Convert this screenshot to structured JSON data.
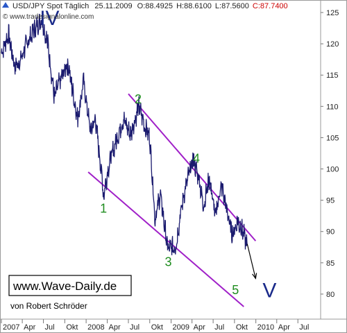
{
  "header": {
    "symbol": "USD/JPY Spot Täglich",
    "date": "25.11.2009",
    "open": "O:88.4925",
    "high": "H:88.6100",
    "low": "L:87.5600",
    "close": "C:87.7400",
    "source": "© www.tradesignalonline.com"
  },
  "watermark": {
    "site": "www.Wave-Daily.de",
    "author": "von Robert Schröder"
  },
  "colors": {
    "price": "#1a1a6e",
    "channel": "#a020c8",
    "wave_label": "#1e8c1e",
    "wave_big": "#1a2a8a",
    "close": "#cc0000"
  },
  "chart_data": {
    "type": "line",
    "title": "USD/JPY Spot Täglich",
    "xlabel": "",
    "ylabel": "",
    "ylim": [
      76,
      127
    ],
    "y_ticks": [
      80,
      85,
      90,
      95,
      100,
      105,
      110,
      115,
      120,
      125
    ],
    "x_ticks": [
      "2007",
      "Apr",
      "Jul",
      "Okt",
      "2008",
      "Apr",
      "Jul",
      "Okt",
      "2009",
      "Apr",
      "Jul",
      "Okt",
      "2010",
      "Apr",
      "Jul"
    ],
    "x_tick_dates": [
      "2007-01-01",
      "2007-04-01",
      "2007-07-01",
      "2007-10-01",
      "2008-01-01",
      "2008-04-01",
      "2008-07-01",
      "2008-10-01",
      "2009-01-01",
      "2009-04-01",
      "2009-07-01",
      "2009-10-01",
      "2010-01-01",
      "2010-04-01",
      "2010-07-01"
    ],
    "series": [
      {
        "points": [
          [
            "2007-01-01",
            118.5
          ],
          [
            "2007-02-01",
            121.5
          ],
          [
            "2007-02-26",
            116.5
          ],
          [
            "2007-03-20",
            117.0
          ],
          [
            "2007-04-20",
            120.0
          ],
          [
            "2007-05-20",
            122.0
          ],
          [
            "2007-06-22",
            124.0
          ],
          [
            "2007-07-20",
            120.0
          ],
          [
            "2007-08-17",
            111.5
          ],
          [
            "2007-09-10",
            114.0
          ],
          [
            "2007-10-15",
            117.0
          ],
          [
            "2007-11-01",
            113.0
          ],
          [
            "2007-11-26",
            108.0
          ],
          [
            "2007-12-20",
            114.0
          ],
          [
            "2008-01-20",
            106.0
          ],
          [
            "2008-02-10",
            108.0
          ],
          [
            "2008-03-17",
            96.0
          ],
          [
            "2008-04-10",
            101.0
          ],
          [
            "2008-05-10",
            104.5
          ],
          [
            "2008-06-10",
            108.0
          ],
          [
            "2008-07-10",
            105.5
          ],
          [
            "2008-08-15",
            110.0
          ],
          [
            "2008-09-10",
            107.0
          ],
          [
            "2008-10-01",
            105.0
          ],
          [
            "2008-10-24",
            92.0
          ],
          [
            "2008-11-15",
            96.0
          ],
          [
            "2008-12-17",
            87.3
          ],
          [
            "2009-01-21",
            87.5
          ],
          [
            "2009-02-15",
            94.0
          ],
          [
            "2009-03-10",
            98.0
          ],
          [
            "2009-04-06",
            101.5
          ],
          [
            "2009-05-01",
            98.5
          ],
          [
            "2009-05-20",
            94.0
          ],
          [
            "2009-06-15",
            98.5
          ],
          [
            "2009-07-10",
            92.5
          ],
          [
            "2009-08-05",
            97.5
          ],
          [
            "2009-09-01",
            93.0
          ],
          [
            "2009-09-20",
            89.5
          ],
          [
            "2009-10-15",
            91.5
          ],
          [
            "2009-11-01",
            90.5
          ],
          [
            "2009-11-25",
            87.74
          ]
        ]
      }
    ],
    "channel_upper": [
      [
        "2008-07-01",
        112.0
      ],
      [
        "2009-12-31",
        88.5
      ]
    ],
    "channel_lower": [
      [
        "2008-01-10",
        99.5
      ],
      [
        "2009-11-10",
        78.0
      ]
    ],
    "projection": [
      [
        "2009-11-25",
        88.0
      ],
      [
        "2009-12-31",
        82.5
      ]
    ],
    "wave_labels": [
      {
        "text": "IV",
        "x": "2007-06-15",
        "y": 123.0,
        "size": "big"
      },
      {
        "text": "1",
        "x": "2008-03-01",
        "y": 93.0,
        "size": "small"
      },
      {
        "text": "2",
        "x": "2008-07-28",
        "y": 110.5,
        "size": "small"
      },
      {
        "text": "3",
        "x": "2008-12-05",
        "y": 84.5,
        "size": "small"
      },
      {
        "text": "4",
        "x": "2009-04-05",
        "y": 101.0,
        "size": "small"
      },
      {
        "text": "5",
        "x": "2009-09-20",
        "y": 80.0,
        "size": "small"
      },
      {
        "text": "V",
        "x": "2010-01-30",
        "y": 79.5,
        "size": "big"
      }
    ]
  }
}
